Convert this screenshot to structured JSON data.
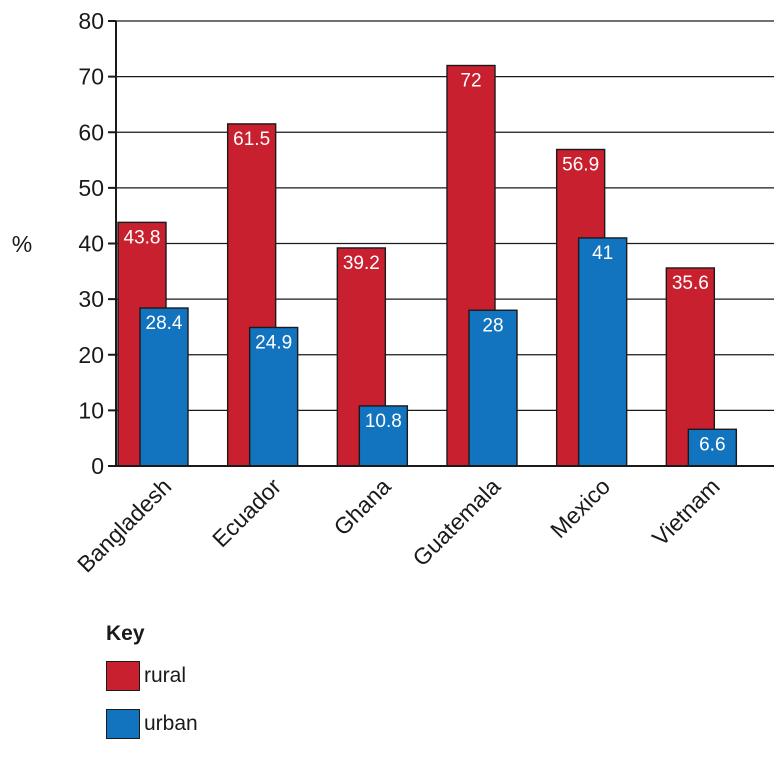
{
  "chart_data": {
    "type": "bar",
    "categories": [
      "Bangladesh",
      "Ecuador",
      "Ghana",
      "Guatemala",
      "Mexico",
      "Vietnam"
    ],
    "series": [
      {
        "name": "rural",
        "color": "#c8202f",
        "values": [
          43.8,
          61.5,
          39.2,
          72,
          56.9,
          35.6
        ]
      },
      {
        "name": "urban",
        "color": "#1273be",
        "values": [
          28.4,
          24.9,
          10.8,
          28,
          41,
          6.6
        ]
      }
    ],
    "ylabel": "%",
    "ylim": [
      0,
      80
    ],
    "yticks": [
      0,
      10,
      20,
      30,
      40,
      50,
      60,
      70,
      80
    ],
    "grid": true,
    "data_labels": true,
    "legend": {
      "title": "Key",
      "placement": "bottom-left",
      "items": [
        {
          "label": "rural",
          "color": "#c8202f"
        },
        {
          "label": "urban",
          "color": "#1273be"
        }
      ]
    }
  }
}
